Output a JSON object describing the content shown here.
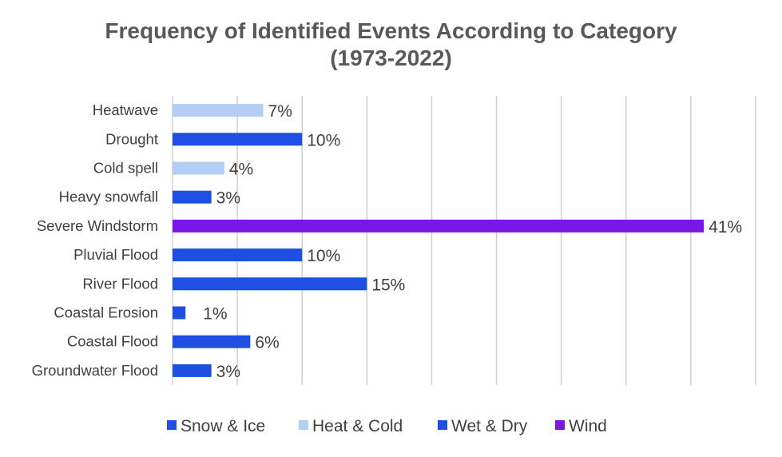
{
  "chart_data": {
    "type": "bar",
    "orientation": "horizontal",
    "title": "Frequency of Identified Events According to Category",
    "subtitle": "(1973-2022)",
    "categories": [
      "Heatwave",
      "Drought",
      "Cold spell",
      "Heavy snowfall",
      "Severe Windstorm",
      "Pluvial Flood",
      "River Flood",
      "Coastal Erosion",
      "Coastal Flood",
      "Groundwater Flood"
    ],
    "values": [
      7,
      10,
      4,
      3,
      41,
      10,
      15,
      1,
      6,
      3
    ],
    "data_labels": [
      "7%",
      "10%",
      "4%",
      "3%",
      "41%",
      "10%",
      "15%",
      "1%",
      "6%",
      "3%"
    ],
    "bar_groups": [
      "Heat & Cold",
      "Wet & Dry",
      "Heat & Cold",
      "Snow & Ice",
      "Wind",
      "Wet & Dry",
      "Wet & Dry",
      "Wet & Dry",
      "Wet & Dry",
      "Wet & Dry"
    ],
    "legend": [
      {
        "name": "Snow & Ice",
        "color": "#1f4fe0"
      },
      {
        "name": "Heat & Cold",
        "color": "#b4cdf7"
      },
      {
        "name": "Wet & Dry",
        "color": "#1f4fe0"
      },
      {
        "name": "Wind",
        "color": "#7b16e6"
      }
    ],
    "xlim": [
      0,
      45
    ],
    "vertical_grid": true,
    "legend_position": "bottom",
    "xlabel": "",
    "ylabel": ""
  }
}
